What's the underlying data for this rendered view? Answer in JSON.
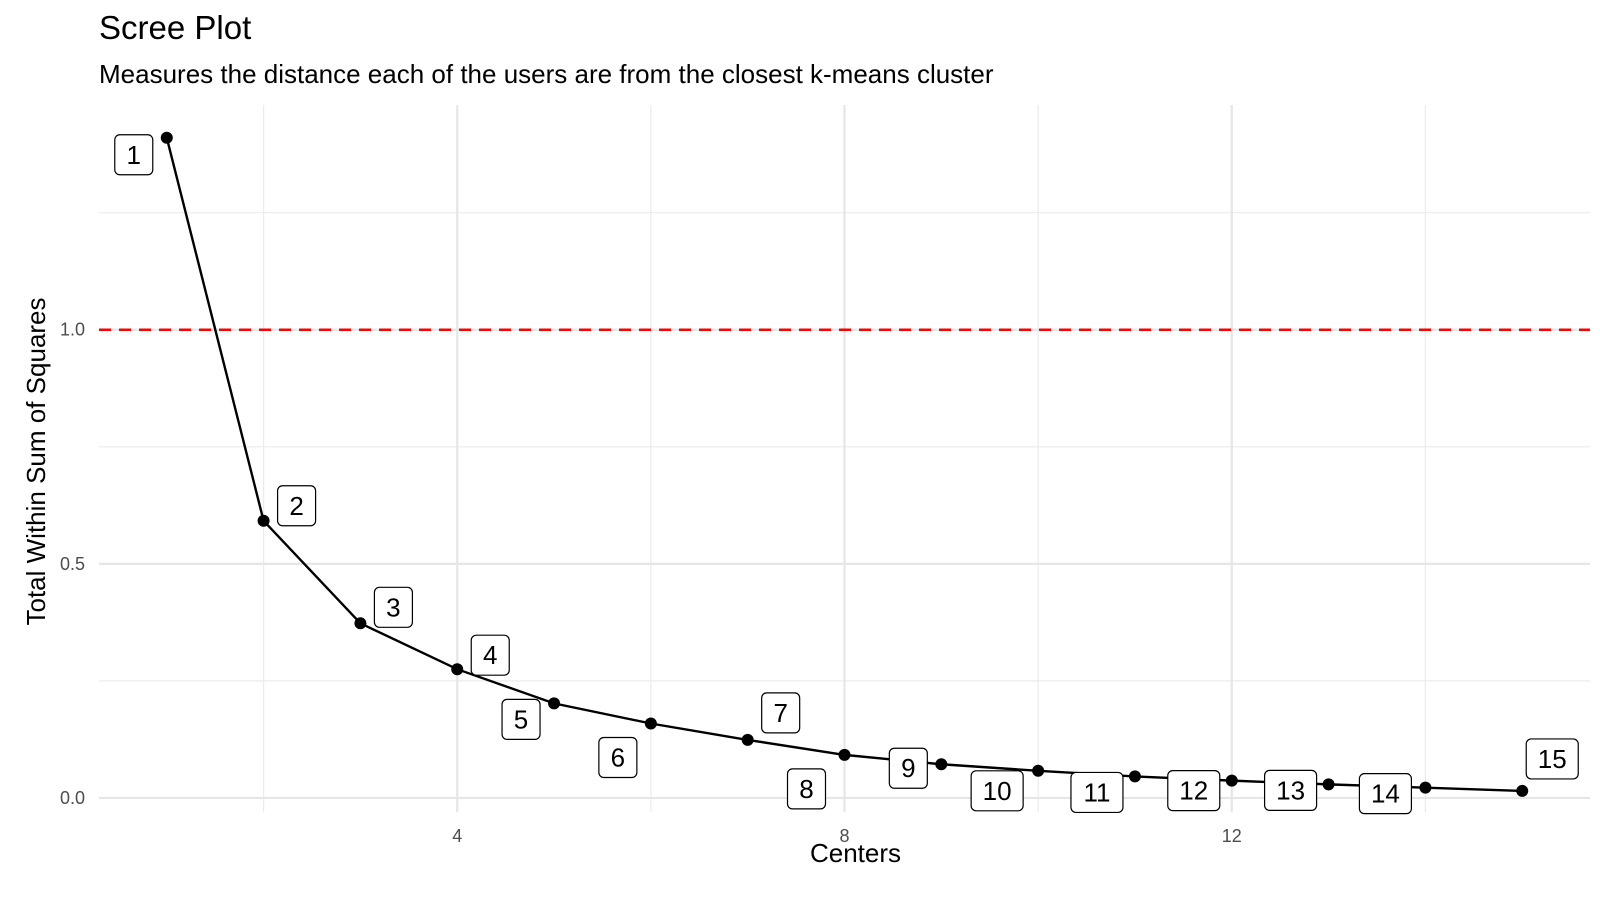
{
  "title": "Scree Plot",
  "subtitle": "Measures the distance each of the users are from the closest k-means cluster",
  "chart_data": {
    "type": "line",
    "title": "Scree Plot",
    "subtitle": "Measures the distance each of the users are from the closest k-means cluster",
    "xlabel": "Centers",
    "ylabel": "Total Within Sum of Squares",
    "xlim": [
      0.3,
      15.7
    ],
    "ylim": [
      -0.03,
      1.48
    ],
    "x_ticks": [
      4,
      8,
      12
    ],
    "y_ticks": [
      0.0,
      0.5,
      1.0
    ],
    "y_tick_labels": [
      "0.0",
      "0.5",
      "1.0"
    ],
    "grid": true,
    "reference_line": {
      "y": 1.0,
      "color": "#ff0000",
      "style": "dashed"
    },
    "series": [
      {
        "x": [
          1,
          2,
          3,
          4,
          5,
          6,
          7,
          8,
          9,
          10,
          11,
          12,
          13,
          14,
          15
        ],
        "y": [
          1.41,
          0.592,
          0.373,
          0.275,
          0.202,
          0.159,
          0.124,
          0.092,
          0.072,
          0.058,
          0.046,
          0.037,
          0.029,
          0.022,
          0.015
        ],
        "labels": [
          "1",
          "2",
          "3",
          "4",
          "5",
          "6",
          "7",
          "8",
          "9",
          "10",
          "11",
          "12",
          "13",
          "14",
          "15"
        ],
        "color": "#000000"
      }
    ]
  }
}
